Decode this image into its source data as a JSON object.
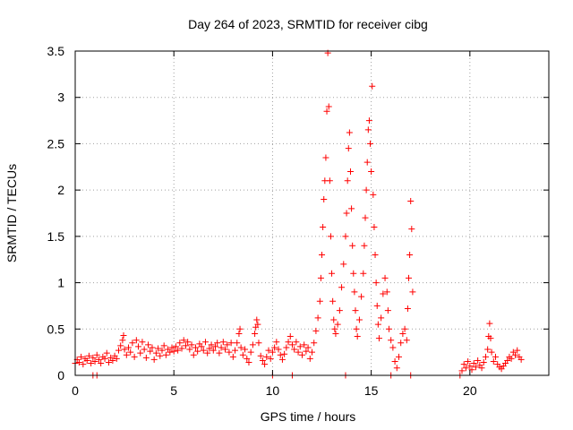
{
  "chart_data": {
    "type": "scatter",
    "title": "Day 264 of 2023, SRMTID for receiver cibg",
    "xlabel": "GPS time / hours",
    "ylabel": "SRMTID / TECUs",
    "xlim": [
      0,
      24
    ],
    "ylim": [
      0,
      3.5
    ],
    "x_ticks": [
      0,
      5,
      10,
      15,
      20
    ],
    "x_tick_labels": [
      "0",
      "5",
      "10",
      "15",
      "20"
    ],
    "y_ticks": [
      0,
      0.5,
      1,
      1.5,
      2,
      2.5,
      3,
      3.5
    ],
    "y_tick_labels": [
      "0",
      "0.5",
      "1",
      "1.5",
      "2",
      "2.5",
      "3",
      "3.5"
    ],
    "grid": true,
    "marker": "+",
    "color": "#ff0000",
    "series": [
      {
        "name": "SRMTID",
        "points": [
          [
            0.0,
            0.13
          ],
          [
            0.1,
            0.17
          ],
          [
            0.2,
            0.14
          ],
          [
            0.3,
            0.2
          ],
          [
            0.4,
            0.12
          ],
          [
            0.5,
            0.18
          ],
          [
            0.6,
            0.16
          ],
          [
            0.7,
            0.21
          ],
          [
            0.8,
            0.13
          ],
          [
            0.9,
            0.19
          ],
          [
            1.0,
            0.15
          ],
          [
            1.1,
            0.22
          ],
          [
            1.2,
            0.17
          ],
          [
            1.3,
            0.13
          ],
          [
            1.4,
            0.2
          ],
          [
            1.5,
            0.18
          ],
          [
            1.6,
            0.24
          ],
          [
            1.7,
            0.14
          ],
          [
            1.8,
            0.19
          ],
          [
            1.9,
            0.16
          ],
          [
            2.0,
            0.21
          ],
          [
            2.1,
            0.18
          ],
          [
            2.2,
            0.27
          ],
          [
            2.3,
            0.32
          ],
          [
            2.4,
            0.38
          ],
          [
            2.45,
            0.43
          ],
          [
            2.5,
            0.28
          ],
          [
            2.6,
            0.22
          ],
          [
            2.7,
            0.3
          ],
          [
            2.8,
            0.25
          ],
          [
            2.9,
            0.35
          ],
          [
            3.0,
            0.2
          ],
          [
            3.1,
            0.38
          ],
          [
            3.2,
            0.31
          ],
          [
            3.3,
            0.24
          ],
          [
            3.4,
            0.36
          ],
          [
            3.5,
            0.28
          ],
          [
            3.6,
            0.19
          ],
          [
            3.7,
            0.33
          ],
          [
            3.8,
            0.26
          ],
          [
            3.9,
            0.3
          ],
          [
            4.0,
            0.17
          ],
          [
            4.1,
            0.24
          ],
          [
            4.2,
            0.29
          ],
          [
            4.3,
            0.21
          ],
          [
            4.4,
            0.27
          ],
          [
            4.5,
            0.32
          ],
          [
            4.6,
            0.22
          ],
          [
            4.7,
            0.28
          ],
          [
            4.8,
            0.25
          ],
          [
            4.9,
            0.3
          ],
          [
            5.0,
            0.26
          ],
          [
            5.1,
            0.31
          ],
          [
            5.2,
            0.27
          ],
          [
            5.3,
            0.35
          ],
          [
            5.4,
            0.29
          ],
          [
            5.5,
            0.38
          ],
          [
            5.6,
            0.32
          ],
          [
            5.7,
            0.36
          ],
          [
            5.8,
            0.28
          ],
          [
            5.9,
            0.33
          ],
          [
            6.0,
            0.22
          ],
          [
            6.1,
            0.3
          ],
          [
            6.2,
            0.26
          ],
          [
            6.3,
            0.34
          ],
          [
            6.4,
            0.31
          ],
          [
            6.5,
            0.27
          ],
          [
            6.6,
            0.36
          ],
          [
            6.7,
            0.24
          ],
          [
            6.8,
            0.29
          ],
          [
            6.9,
            0.33
          ],
          [
            7.0,
            0.27
          ],
          [
            7.1,
            0.31
          ],
          [
            7.2,
            0.35
          ],
          [
            7.3,
            0.24
          ],
          [
            7.4,
            0.3
          ],
          [
            7.5,
            0.36
          ],
          [
            7.6,
            0.28
          ],
          [
            7.7,
            0.33
          ],
          [
            7.8,
            0.25
          ],
          [
            7.9,
            0.35
          ],
          [
            8.0,
            0.2
          ],
          [
            8.1,
            0.27
          ],
          [
            8.2,
            0.35
          ],
          [
            8.3,
            0.45
          ],
          [
            8.35,
            0.5
          ],
          [
            8.4,
            0.3
          ],
          [
            8.5,
            0.22
          ],
          [
            8.6,
            0.28
          ],
          [
            8.7,
            0.18
          ],
          [
            8.8,
            0.14
          ],
          [
            8.9,
            0.25
          ],
          [
            9.0,
            0.33
          ],
          [
            9.1,
            0.45
          ],
          [
            9.15,
            0.52
          ],
          [
            9.2,
            0.6
          ],
          [
            9.25,
            0.55
          ],
          [
            9.3,
            0.35
          ],
          [
            9.4,
            0.21
          ],
          [
            9.5,
            0.16
          ],
          [
            9.6,
            0.12
          ],
          [
            9.7,
            0.2
          ],
          [
            9.8,
            0.27
          ],
          [
            9.9,
            0.18
          ],
          [
            10.0,
            0.25
          ],
          [
            10.1,
            0.3
          ],
          [
            10.2,
            0.36
          ],
          [
            10.3,
            0.28
          ],
          [
            10.4,
            0.22
          ],
          [
            10.5,
            0.17
          ],
          [
            10.6,
            0.23
          ],
          [
            10.7,
            0.3
          ],
          [
            10.8,
            0.36
          ],
          [
            10.9,
            0.42
          ],
          [
            11.0,
            0.33
          ],
          [
            11.1,
            0.28
          ],
          [
            11.2,
            0.36
          ],
          [
            11.3,
            0.25
          ],
          [
            11.4,
            0.31
          ],
          [
            11.5,
            0.22
          ],
          [
            11.6,
            0.33
          ],
          [
            11.7,
            0.26
          ],
          [
            11.8,
            0.3
          ],
          [
            11.9,
            0.18
          ],
          [
            12.0,
            0.25
          ],
          [
            12.1,
            0.35
          ],
          [
            12.2,
            0.48
          ],
          [
            12.3,
            0.62
          ],
          [
            12.4,
            0.8
          ],
          [
            12.45,
            1.05
          ],
          [
            12.5,
            1.3
          ],
          [
            12.55,
            1.6
          ],
          [
            12.6,
            1.9
          ],
          [
            12.65,
            2.1
          ],
          [
            12.7,
            2.35
          ],
          [
            12.75,
            2.85
          ],
          [
            12.8,
            3.48
          ],
          [
            12.85,
            2.9
          ],
          [
            12.9,
            2.1
          ],
          [
            12.95,
            1.5
          ],
          [
            13.0,
            1.1
          ],
          [
            13.05,
            0.8
          ],
          [
            13.1,
            0.6
          ],
          [
            13.15,
            0.5
          ],
          [
            13.2,
            0.45
          ],
          [
            13.3,
            0.55
          ],
          [
            13.4,
            0.7
          ],
          [
            13.5,
            0.95
          ],
          [
            13.6,
            1.2
          ],
          [
            13.7,
            1.5
          ],
          [
            13.75,
            1.75
          ],
          [
            13.8,
            2.1
          ],
          [
            13.85,
            2.45
          ],
          [
            13.9,
            2.62
          ],
          [
            13.95,
            2.2
          ],
          [
            14.0,
            1.8
          ],
          [
            14.05,
            1.4
          ],
          [
            14.1,
            1.1
          ],
          [
            14.15,
            0.9
          ],
          [
            14.2,
            0.7
          ],
          [
            14.25,
            0.5
          ],
          [
            14.3,
            0.42
          ],
          [
            14.4,
            0.6
          ],
          [
            14.5,
            0.85
          ],
          [
            14.6,
            1.1
          ],
          [
            14.65,
            1.4
          ],
          [
            14.7,
            1.7
          ],
          [
            14.75,
            2.0
          ],
          [
            14.8,
            2.3
          ],
          [
            14.85,
            2.65
          ],
          [
            14.9,
            2.75
          ],
          [
            14.95,
            2.5
          ],
          [
            15.0,
            2.2
          ],
          [
            15.05,
            3.12
          ],
          [
            15.1,
            1.95
          ],
          [
            15.15,
            1.6
          ],
          [
            15.2,
            1.3
          ],
          [
            15.25,
            1.0
          ],
          [
            15.3,
            0.75
          ],
          [
            15.35,
            0.55
          ],
          [
            15.4,
            0.4
          ],
          [
            15.5,
            0.62
          ],
          [
            15.6,
            0.88
          ],
          [
            15.7,
            1.05
          ],
          [
            15.8,
            0.9
          ],
          [
            15.85,
            0.7
          ],
          [
            15.9,
            0.5
          ],
          [
            16.0,
            0.38
          ],
          [
            16.1,
            0.3
          ],
          [
            16.2,
            0.15
          ],
          [
            16.3,
            0.08
          ],
          [
            16.4,
            0.2
          ],
          [
            16.5,
            0.35
          ],
          [
            16.6,
            0.45
          ],
          [
            16.7,
            0.5
          ],
          [
            16.8,
            0.38
          ],
          [
            16.85,
            0.72
          ],
          [
            16.9,
            1.05
          ],
          [
            16.95,
            1.3
          ],
          [
            17.0,
            1.88
          ],
          [
            17.05,
            1.58
          ],
          [
            17.1,
            0.9
          ],
          [
            19.6,
            0.05
          ],
          [
            19.7,
            0.12
          ],
          [
            19.8,
            0.08
          ],
          [
            19.9,
            0.15
          ],
          [
            20.0,
            0.1
          ],
          [
            20.1,
            0.06
          ],
          [
            20.2,
            0.13
          ],
          [
            20.3,
            0.09
          ],
          [
            20.4,
            0.16
          ],
          [
            20.5,
            0.11
          ],
          [
            20.6,
            0.08
          ],
          [
            20.7,
            0.14
          ],
          [
            20.8,
            0.2
          ],
          [
            20.9,
            0.28
          ],
          [
            20.95,
            0.42
          ],
          [
            21.0,
            0.56
          ],
          [
            21.05,
            0.4
          ],
          [
            21.1,
            0.25
          ],
          [
            21.2,
            0.15
          ],
          [
            21.3,
            0.2
          ],
          [
            21.4,
            0.12
          ],
          [
            21.5,
            0.09
          ],
          [
            21.6,
            0.07
          ],
          [
            21.7,
            0.1
          ],
          [
            21.8,
            0.13
          ],
          [
            21.9,
            0.16
          ],
          [
            22.0,
            0.2
          ],
          [
            22.1,
            0.18
          ],
          [
            22.2,
            0.25
          ],
          [
            22.3,
            0.22
          ],
          [
            22.4,
            0.27
          ],
          [
            22.5,
            0.2
          ],
          [
            22.6,
            0.17
          ]
        ],
        "zeros": [
          0.9,
          1.1,
          10.0,
          11.0,
          13.7,
          16.0,
          17.0,
          19.5
        ]
      }
    ]
  }
}
